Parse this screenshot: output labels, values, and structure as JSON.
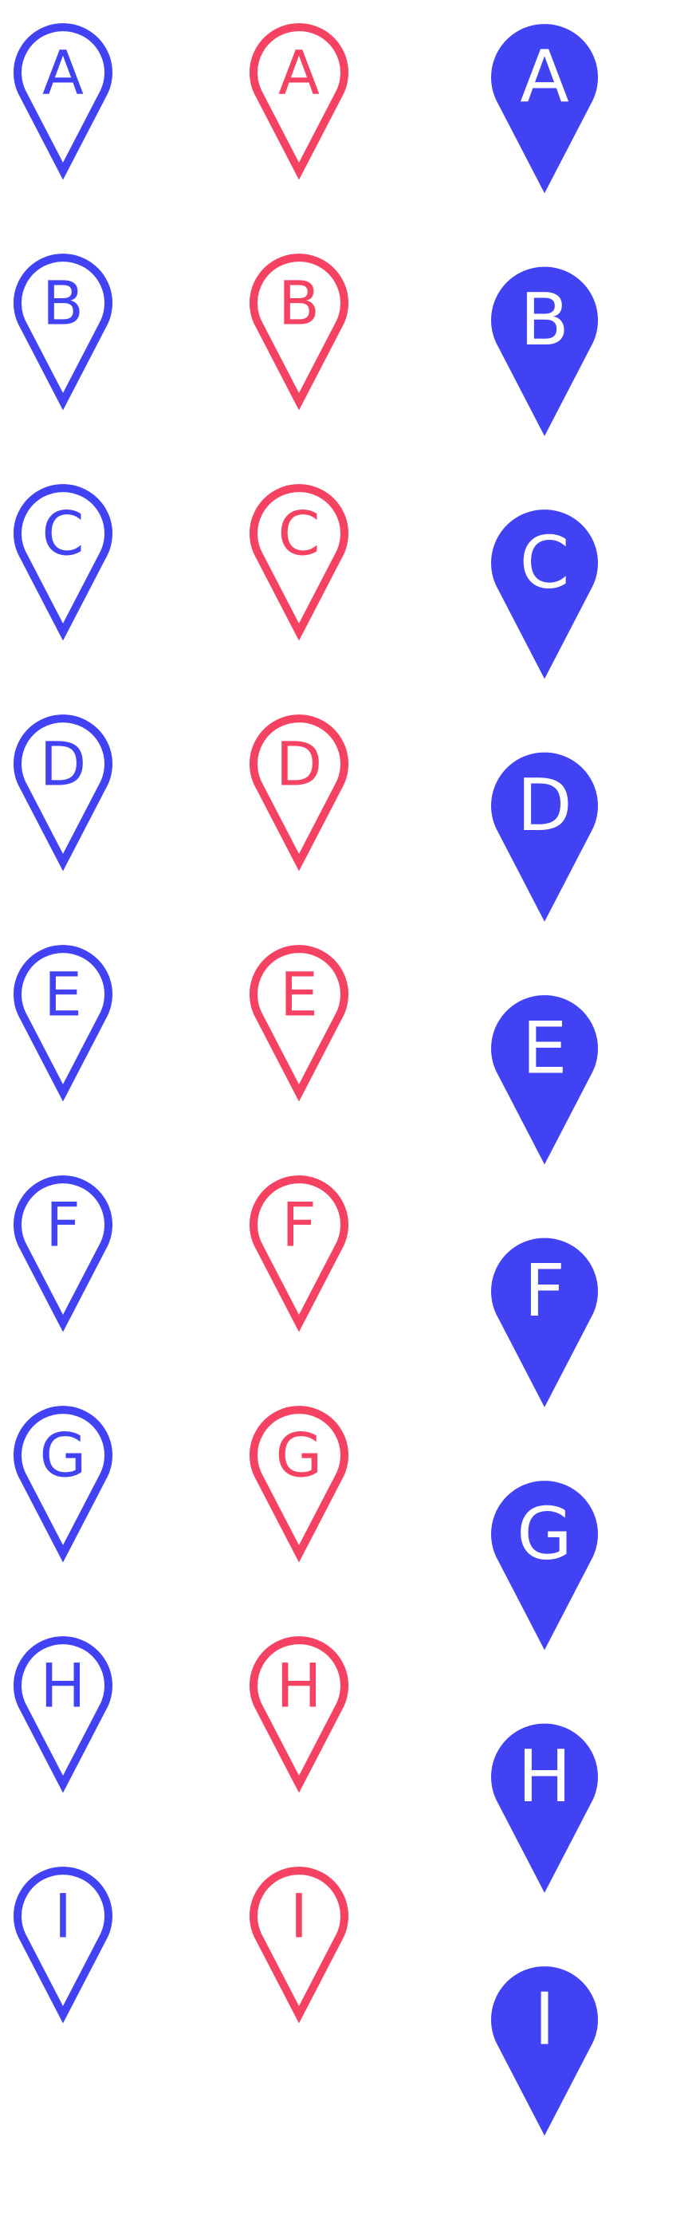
{
  "colors": {
    "blue": "#4242f5",
    "red": "#f54263",
    "white": "#ffffff"
  },
  "columns": [
    {
      "key": "outline-blue",
      "style": "outline",
      "color": "#4242f5",
      "labels": [
        "A",
        "B",
        "C",
        "D",
        "E",
        "F",
        "G",
        "H",
        "I"
      ]
    },
    {
      "key": "outline-red",
      "style": "outline",
      "color": "#f54263",
      "labels": [
        "A",
        "B",
        "C",
        "D",
        "E",
        "F",
        "G",
        "H",
        "I"
      ]
    },
    {
      "key": "filled-blue",
      "style": "filled",
      "color": "#4242f5",
      "labels": [
        "A",
        "B",
        "C",
        "D",
        "E",
        "F",
        "G",
        "H",
        "I"
      ]
    }
  ]
}
